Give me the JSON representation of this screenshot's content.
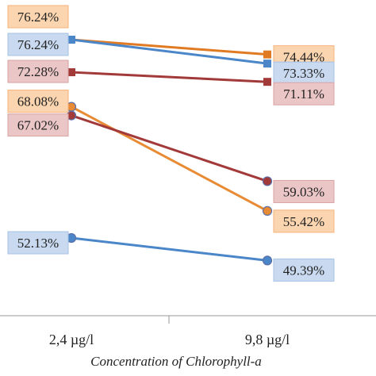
{
  "chart_data": {
    "type": "line",
    "title": "",
    "xlabel": "Concentration of Chlorophyll-a",
    "ylabel": "",
    "categories": [
      "2,4 µg/l",
      "9,8 µg/l"
    ],
    "ylim": [
      45,
      78
    ],
    "grid": false,
    "legend": "none",
    "series": [
      {
        "values": [
          76.24,
          74.44
        ],
        "labels": [
          "76.24%",
          "74.44%"
        ],
        "color": "#e07b24",
        "marker": "square",
        "label_bg": "#fbd5b0",
        "label_border": "#f5b27a"
      },
      {
        "values": [
          76.24,
          73.33
        ],
        "labels": [
          "76.24%",
          "73.33%"
        ],
        "color": "#4a86c8",
        "marker": "square",
        "label_bg": "#c9daf0",
        "label_border": "#a5c2e6"
      },
      {
        "values": [
          72.28,
          71.11
        ],
        "labels": [
          "72.28%",
          "71.11%"
        ],
        "color": "#a33a3a",
        "marker": "square",
        "label_bg": "#ebc6c6",
        "label_border": "#d9a2a2"
      },
      {
        "values": [
          68.08,
          55.42
        ],
        "labels": [
          "68.08%",
          "55.42%"
        ],
        "color": "#e88b34",
        "marker": "circle",
        "label_bg": "#fbd5b0",
        "label_border": "#f5b27a"
      },
      {
        "values": [
          67.02,
          59.03
        ],
        "labels": [
          "67.02%",
          "59.03%"
        ],
        "color": "#a33a3a",
        "marker": "circle",
        "label_bg": "#ebc6c6",
        "label_border": "#d9a2a2"
      },
      {
        "values": [
          52.13,
          49.39
        ],
        "labels": [
          "52.13%",
          "49.39%"
        ],
        "color": "#4a86c8",
        "marker": "circle",
        "label_bg": "#c9daf0",
        "label_border": "#a5c2e6"
      }
    ]
  }
}
